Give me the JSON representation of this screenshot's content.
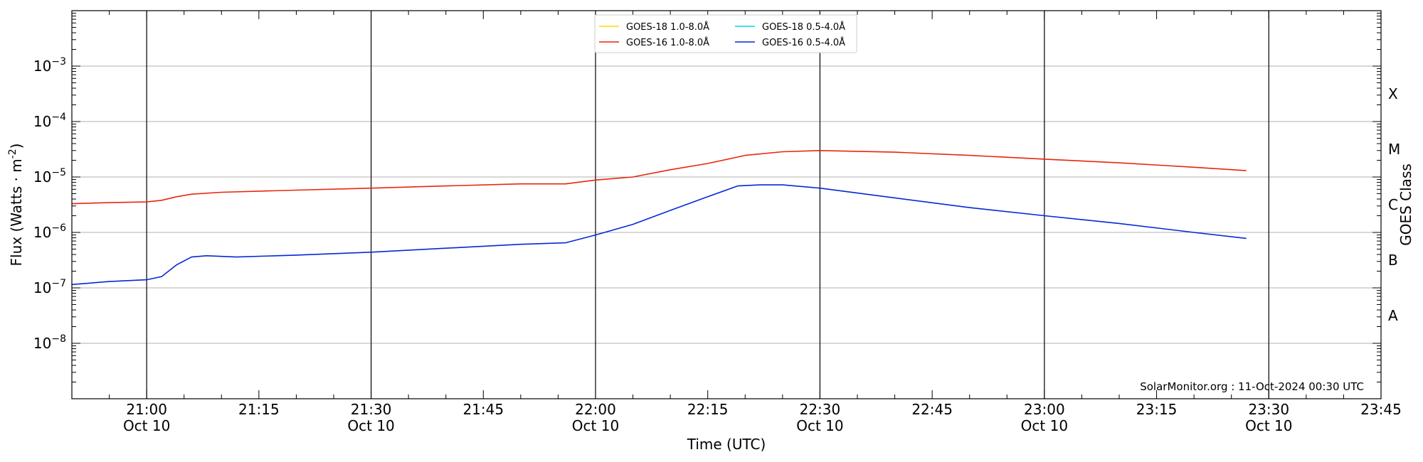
{
  "chart_data": {
    "type": "line",
    "title": "",
    "xlabel": "Time (UTC)",
    "ylabel": "Flux (Watts · m",
    "ylabel_sup": "-2",
    "ylabel_close": ")",
    "y2label": "GOES Class",
    "yscale": "log",
    "ylim": [
      1e-09,
      0.01
    ],
    "xlim": [
      "2024-10-10 20:50",
      "2024-10-10 23:45"
    ],
    "grid": {
      "horizontal": true,
      "vertical_major": true
    },
    "legend_position": "upper-center",
    "credit": "SolarMonitor.org : 11-Oct-2024 00:30 UTC",
    "y_ticks": [
      {
        "value": 0.001,
        "base": "10",
        "exp": "−3"
      },
      {
        "value": 0.0001,
        "base": "10",
        "exp": "−4"
      },
      {
        "value": 1e-05,
        "base": "10",
        "exp": "−5"
      },
      {
        "value": 1e-06,
        "base": "10",
        "exp": "−6"
      },
      {
        "value": 1e-07,
        "base": "10",
        "exp": "−7"
      },
      {
        "value": 1e-08,
        "base": "10",
        "exp": "−8"
      }
    ],
    "goes_classes": [
      {
        "label": "X",
        "value": 0.000316
      },
      {
        "label": "M",
        "value": 3.16e-05
      },
      {
        "label": "C",
        "value": 3.16e-06
      },
      {
        "label": "B",
        "value": 3.16e-07
      },
      {
        "label": "A",
        "value": 3.16e-08
      }
    ],
    "x_ticks": [
      {
        "time": "21:00",
        "label": "21:00",
        "date": "Oct 10"
      },
      {
        "time": "21:15",
        "label": "21:15",
        "date": ""
      },
      {
        "time": "21:30",
        "label": "21:30",
        "date": "Oct 10"
      },
      {
        "time": "21:45",
        "label": "21:45",
        "date": ""
      },
      {
        "time": "22:00",
        "label": "22:00",
        "date": "Oct 10"
      },
      {
        "time": "22:15",
        "label": "22:15",
        "date": ""
      },
      {
        "time": "22:30",
        "label": "22:30",
        "date": "Oct 10"
      },
      {
        "time": "22:45",
        "label": "22:45",
        "date": ""
      },
      {
        "time": "23:00",
        "label": "23:00",
        "date": "Oct 10"
      },
      {
        "time": "23:15",
        "label": "23:15",
        "date": ""
      },
      {
        "time": "23:30",
        "label": "23:30",
        "date": "Oct 10"
      },
      {
        "time": "23:45",
        "label": "23:45",
        "date": ""
      }
    ],
    "series": [
      {
        "name": "GOES-18 1.0-8.0Å",
        "color": "#ffd700",
        "x": [],
        "y": []
      },
      {
        "name": "GOES-16 1.0-8.0Å",
        "color": "#e8260c",
        "x": [
          "20:50",
          "20:55",
          "21:00",
          "21:02",
          "21:04",
          "21:06",
          "21:10",
          "21:20",
          "21:30",
          "21:40",
          "21:50",
          "21:56",
          "22:00",
          "22:05",
          "22:10",
          "22:15",
          "22:20",
          "22:25",
          "22:30",
          "22:40",
          "22:50",
          "23:00",
          "23:10",
          "23:20",
          "23:27"
        ],
        "y": [
          3.3e-06,
          3.45e-06,
          3.55e-06,
          3.8e-06,
          4.4e-06,
          4.9e-06,
          5.3e-06,
          5.8e-06,
          6.3e-06,
          6.9e-06,
          7.5e-06,
          7.5e-06,
          8.8e-06,
          1e-05,
          1.35e-05,
          1.75e-05,
          2.45e-05,
          2.85e-05,
          3e-05,
          2.8e-05,
          2.45e-05,
          2.1e-05,
          1.8e-05,
          1.5e-05,
          1.3e-05
        ]
      },
      {
        "name": "GOES-18 0.5-4.0Å",
        "color": "#00d8e8",
        "x": [],
        "y": []
      },
      {
        "name": "GOES-16 0.5-4.0Å",
        "color": "#0628d8",
        "x": [
          "20:50",
          "20:55",
          "21:00",
          "21:02",
          "21:04",
          "21:06",
          "21:08",
          "21:12",
          "21:20",
          "21:30",
          "21:40",
          "21:50",
          "21:56",
          "22:00",
          "22:05",
          "22:10",
          "22:15",
          "22:19",
          "22:22",
          "22:25",
          "22:30",
          "22:40",
          "22:50",
          "23:00",
          "23:10",
          "23:20",
          "23:27"
        ],
        "y": [
          1.15e-07,
          1.3e-07,
          1.4e-07,
          1.6e-07,
          2.6e-07,
          3.6e-07,
          3.8e-07,
          3.6e-07,
          3.9e-07,
          4.4e-07,
          5.2e-07,
          6.1e-07,
          6.5e-07,
          9e-07,
          1.4e-06,
          2.5e-06,
          4.4e-06,
          6.9e-06,
          7.2e-06,
          7.2e-06,
          6.3e-06,
          4.2e-06,
          2.8e-06,
          2e-06,
          1.45e-06,
          1e-06,
          7.8e-07
        ]
      }
    ]
  }
}
